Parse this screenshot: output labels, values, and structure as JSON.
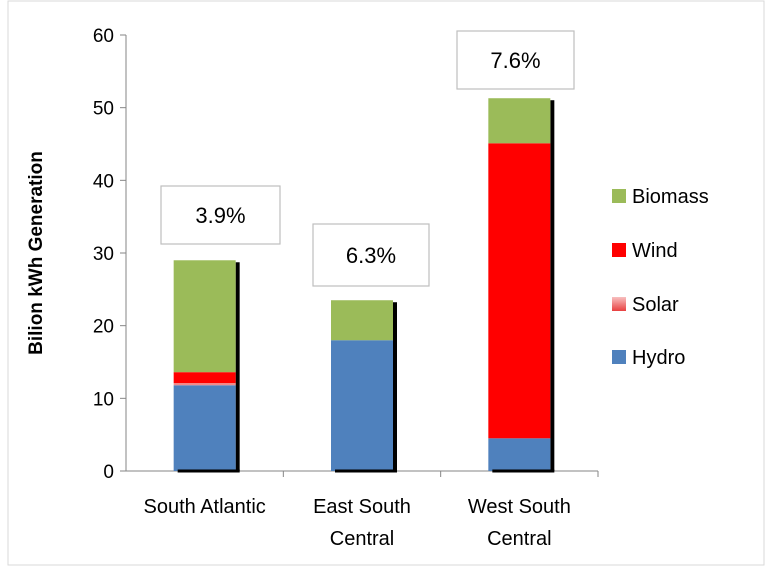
{
  "chart_data": {
    "type": "bar",
    "stacked": true,
    "title": "",
    "xlabel": "",
    "ylabel": "Bilion kWh Generation",
    "ylim": [
      0,
      60
    ],
    "yticks": [
      0,
      10,
      20,
      30,
      40,
      50,
      60
    ],
    "grid": false,
    "legend_position": "right",
    "categories": [
      "South Atlantic",
      "East South Central",
      "West South Central"
    ],
    "category_lines": [
      [
        "South Atlantic"
      ],
      [
        "East South",
        "Central"
      ],
      [
        "West South",
        "Central"
      ]
    ],
    "series": [
      {
        "name": "Hydro",
        "color": "#4f81bd",
        "values": [
          11.8,
          18.0,
          4.5
        ]
      },
      {
        "name": "Solar",
        "color": "#f28b8b",
        "values": [
          0.3,
          0.0,
          0.0
        ]
      },
      {
        "name": "Wind",
        "color": "#ff0000",
        "values": [
          1.5,
          0.0,
          40.6
        ]
      },
      {
        "name": "Biomass",
        "color": "#9bbb59",
        "values": [
          15.4,
          5.5,
          6.2
        ]
      }
    ],
    "legend_order": [
      "Biomass",
      "Wind",
      "Solar",
      "Hydro"
    ],
    "annotations": [
      "3.9%",
      "6.3%",
      "7.6%"
    ]
  }
}
